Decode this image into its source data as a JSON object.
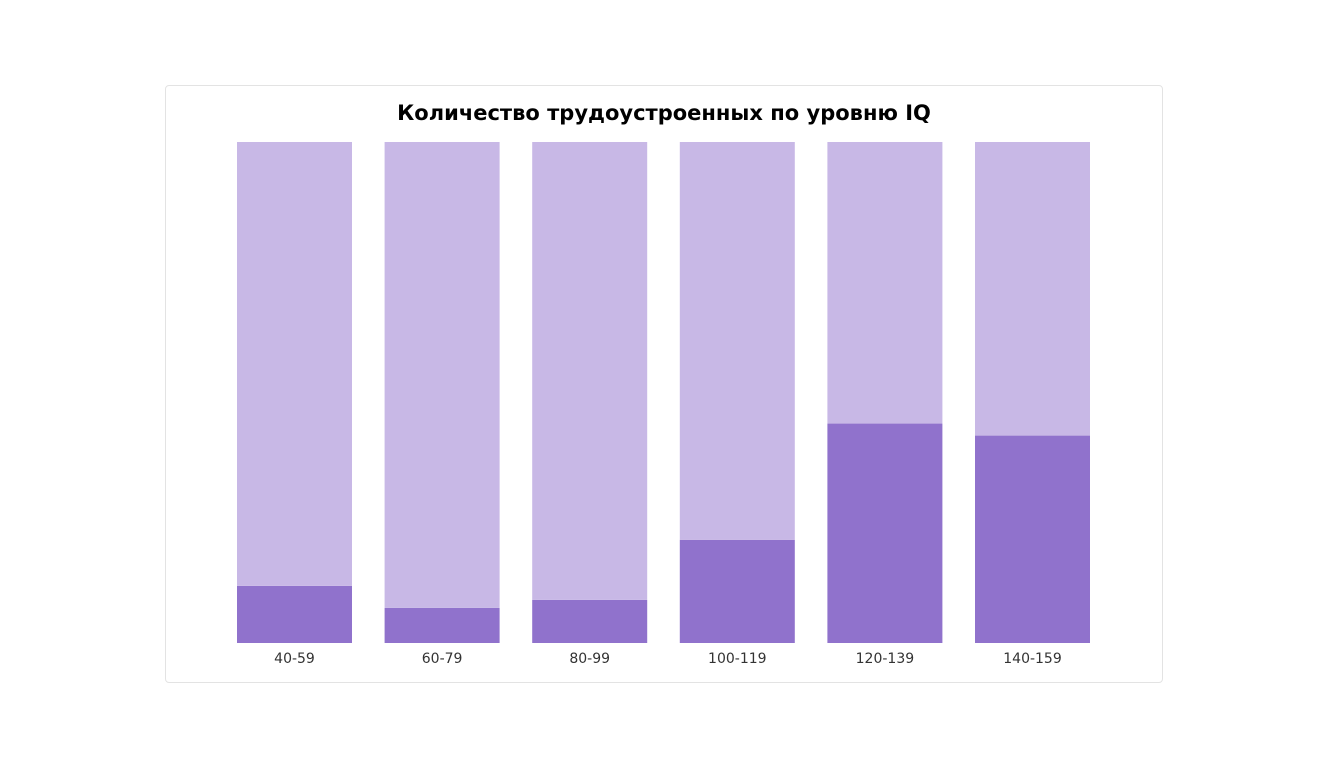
{
  "chart_data": {
    "type": "bar",
    "stacked": true,
    "normalized": true,
    "title": "Количество трудоустроенных по уровню IQ",
    "xlabel": "",
    "ylabel": "",
    "categories": [
      "40-59",
      "60-79",
      "80-99",
      "100-119",
      "120-139",
      "140-159"
    ],
    "series": [
      {
        "color": "#9072cc",
        "values": [
          11.4,
          7.0,
          8.6,
          20.6,
          43.8,
          41.4
        ]
      },
      {
        "color": "#c8b8e6",
        "values": [
          88.6,
          93.0,
          91.4,
          79.4,
          56.2,
          58.6
        ]
      }
    ],
    "ylim": [
      0,
      100
    ],
    "grid": false,
    "legend": "none"
  }
}
